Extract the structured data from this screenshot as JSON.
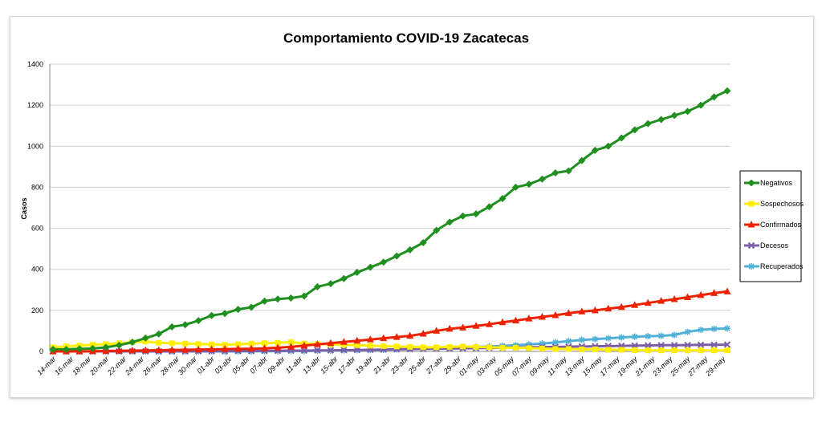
{
  "chart_data": {
    "type": "line",
    "title": "Comportamiento COVID-19 Zacatecas",
    "xlabel": "",
    "ylabel": "Casos",
    "ylim": [
      0,
      1400
    ],
    "yticks": [
      0,
      200,
      400,
      600,
      800,
      1000,
      1200,
      1400
    ],
    "grid": true,
    "legend_position": "right",
    "x_tick_labels": [
      "14-mar",
      "16-mar",
      "18-mar",
      "20-mar",
      "22-mar",
      "24-mar",
      "26-mar",
      "28-mar",
      "30-mar",
      "01-abr",
      "03-abr",
      "05-abr",
      "07-abr",
      "09-abr",
      "11-abr",
      "13-abr",
      "15-abr",
      "17-abr",
      "19-abr",
      "21-abr",
      "23-abr",
      "25-abr",
      "27-abr",
      "29-abr",
      "01-may",
      "03-may",
      "05-may",
      "07-may",
      "09-may",
      "11-may",
      "13-may",
      "15-may",
      "17-may",
      "19-may",
      "21-may",
      "23-may",
      "25-may",
      "27-may",
      "29-may"
    ],
    "series": [
      {
        "name": "Negativos",
        "color": "#1f8f1f",
        "marker": "diamond",
        "values": [
          10,
          10,
          12,
          14,
          20,
          30,
          45,
          65,
          85,
          120,
          130,
          150,
          175,
          185,
          205,
          215,
          245,
          255,
          260,
          270,
          315,
          330,
          355,
          385,
          410,
          435,
          465,
          495,
          530,
          590,
          630,
          660,
          670,
          705,
          745,
          800,
          815,
          840,
          870,
          880,
          930,
          980,
          1000,
          1040,
          1080,
          1110,
          1130,
          1150,
          1170,
          1200,
          1240,
          1270
        ]
      },
      {
        "name": "Sospechosos",
        "color": "#ffee00",
        "marker": "square",
        "values": [
          20,
          25,
          28,
          32,
          35,
          40,
          45,
          48,
          42,
          40,
          38,
          36,
          34,
          32,
          35,
          38,
          40,
          42,
          45,
          38,
          36,
          34,
          32,
          30,
          28,
          26,
          24,
          22,
          20,
          20,
          22,
          24,
          22,
          20,
          18,
          18,
          16,
          14,
          12,
          12,
          10,
          10,
          8,
          8,
          6,
          5,
          5,
          5,
          5,
          5,
          5,
          5
        ]
      },
      {
        "name": "Confirmados",
        "color": "#ee2200",
        "marker": "triangle",
        "values": [
          0,
          0,
          0,
          1,
          2,
          3,
          4,
          5,
          6,
          7,
          8,
          9,
          10,
          11,
          12,
          13,
          15,
          18,
          22,
          28,
          34,
          40,
          46,
          52,
          58,
          64,
          70,
          76,
          86,
          100,
          110,
          116,
          124,
          132,
          142,
          150,
          160,
          168,
          176,
          186,
          194,
          200,
          208,
          216,
          226,
          236,
          246,
          254,
          264,
          274,
          284,
          292
        ]
      },
      {
        "name": "Decesos",
        "color": "#7b5ea7",
        "marker": "x",
        "values": [
          0,
          0,
          0,
          0,
          0,
          0,
          0,
          0,
          0,
          0,
          0,
          1,
          1,
          1,
          2,
          2,
          3,
          3,
          4,
          4,
          5,
          5,
          6,
          7,
          8,
          9,
          10,
          11,
          12,
          13,
          14,
          15,
          16,
          17,
          18,
          19,
          20,
          21,
          22,
          23,
          24,
          25,
          26,
          27,
          28,
          29,
          30,
          30,
          31,
          32,
          32,
          33
        ]
      },
      {
        "name": "Recuperados",
        "color": "#4fb0d8",
        "marker": "star",
        "values": [
          0,
          0,
          0,
          0,
          0,
          0,
          0,
          0,
          0,
          0,
          0,
          0,
          0,
          0,
          0,
          0,
          1,
          1,
          2,
          2,
          3,
          4,
          5,
          6,
          7,
          8,
          10,
          12,
          14,
          16,
          18,
          20,
          22,
          24,
          27,
          30,
          34,
          38,
          44,
          50,
          56,
          60,
          64,
          68,
          72,
          74,
          76,
          80,
          95,
          105,
          110,
          112
        ]
      }
    ]
  }
}
